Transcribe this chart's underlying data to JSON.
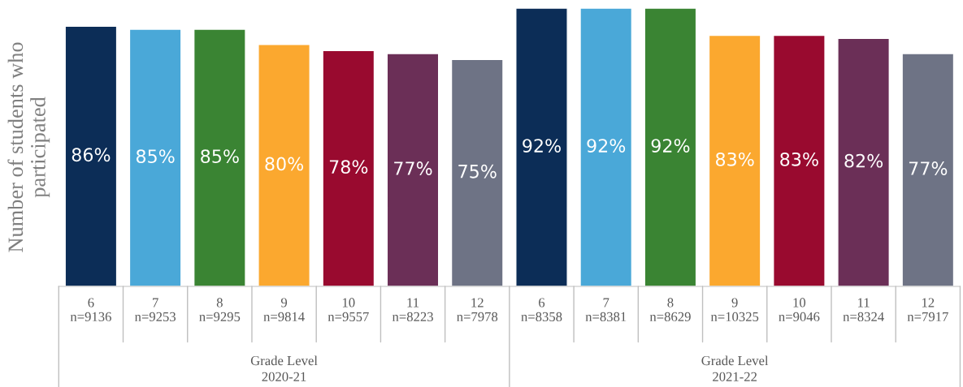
{
  "chart_data": {
    "type": "bar",
    "ylabel": "Number of students who\nparticipated",
    "categories": [
      "6\nn=9136",
      "7\nn=9253",
      "8\nn=9295",
      "9\nn=9814",
      "10\nn=9557",
      "11\nn=8223",
      "12\nn=7978",
      "6\nn=8358",
      "7\nn=8381",
      "8\nn=8629",
      "9\nn=10325",
      "10\nn=9046",
      "11\nn=8324",
      "12\nn=7917"
    ],
    "values": [
      86,
      85,
      85,
      80,
      78,
      77,
      75,
      92,
      92,
      92,
      83,
      83,
      82,
      77
    ],
    "value_labels": [
      "86%",
      "85%",
      "85%",
      "80%",
      "78%",
      "77%",
      "75%",
      "92%",
      "92%",
      "92%",
      "83%",
      "83%",
      "82%",
      "77%"
    ],
    "colors": [
      "#0c2d57",
      "#4aa8d8",
      "#3a8433",
      "#fba82f",
      "#990a2f",
      "#6b2f57",
      "#6e7385",
      "#0c2d57",
      "#4aa8d8",
      "#3a8433",
      "#fba82f",
      "#990a2f",
      "#6b2f57",
      "#6e7385"
    ],
    "ylim": [
      0,
      92
    ],
    "tick_labels": "x",
    "grid": false,
    "legend": false,
    "annotations": [
      "Grade Level\n2020-21",
      "Grade Level\n2021-22"
    ]
  }
}
